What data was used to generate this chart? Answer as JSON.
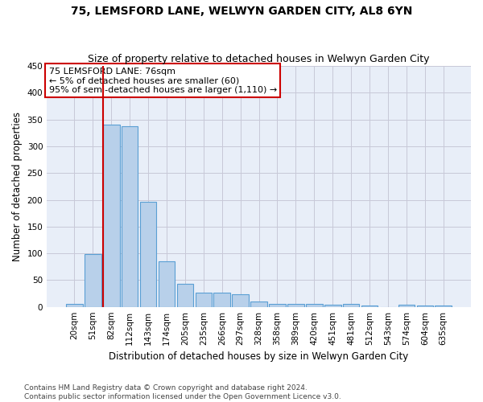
{
  "title": "75, LEMSFORD LANE, WELWYN GARDEN CITY, AL8 6YN",
  "subtitle": "Size of property relative to detached houses in Welwyn Garden City",
  "xlabel": "Distribution of detached houses by size in Welwyn Garden City",
  "ylabel": "Number of detached properties",
  "bar_color": "#b8d0ea",
  "bar_edge_color": "#5a9fd4",
  "bar_edge_width": 0.8,
  "background_color": "#e8eef8",
  "grid_color": "#c8c8d8",
  "categories": [
    "20sqm",
    "51sqm",
    "82sqm",
    "112sqm",
    "143sqm",
    "174sqm",
    "205sqm",
    "235sqm",
    "266sqm",
    "297sqm",
    "328sqm",
    "358sqm",
    "389sqm",
    "420sqm",
    "451sqm",
    "481sqm",
    "512sqm",
    "543sqm",
    "574sqm",
    "604sqm",
    "635sqm"
  ],
  "values": [
    5,
    98,
    340,
    337,
    197,
    85,
    43,
    26,
    26,
    24,
    10,
    6,
    5,
    5,
    4,
    6,
    3,
    0,
    4,
    3,
    3
  ],
  "ylim": [
    0,
    450
  ],
  "yticks": [
    0,
    50,
    100,
    150,
    200,
    250,
    300,
    350,
    400,
    450
  ],
  "vline_x_index": 2,
  "vline_color": "#cc0000",
  "annotation_text": "75 LEMSFORD LANE: 76sqm\n← 5% of detached houses are smaller (60)\n95% of semi-detached houses are larger (1,110) →",
  "annotation_box_color": "#ffffff",
  "annotation_border_color": "#cc0000",
  "footer_text": "Contains HM Land Registry data © Crown copyright and database right 2024.\nContains public sector information licensed under the Open Government Licence v3.0.",
  "title_fontsize": 10,
  "subtitle_fontsize": 9,
  "xlabel_fontsize": 8.5,
  "ylabel_fontsize": 8.5,
  "tick_fontsize": 7.5,
  "annotation_fontsize": 8,
  "footer_fontsize": 6.5
}
